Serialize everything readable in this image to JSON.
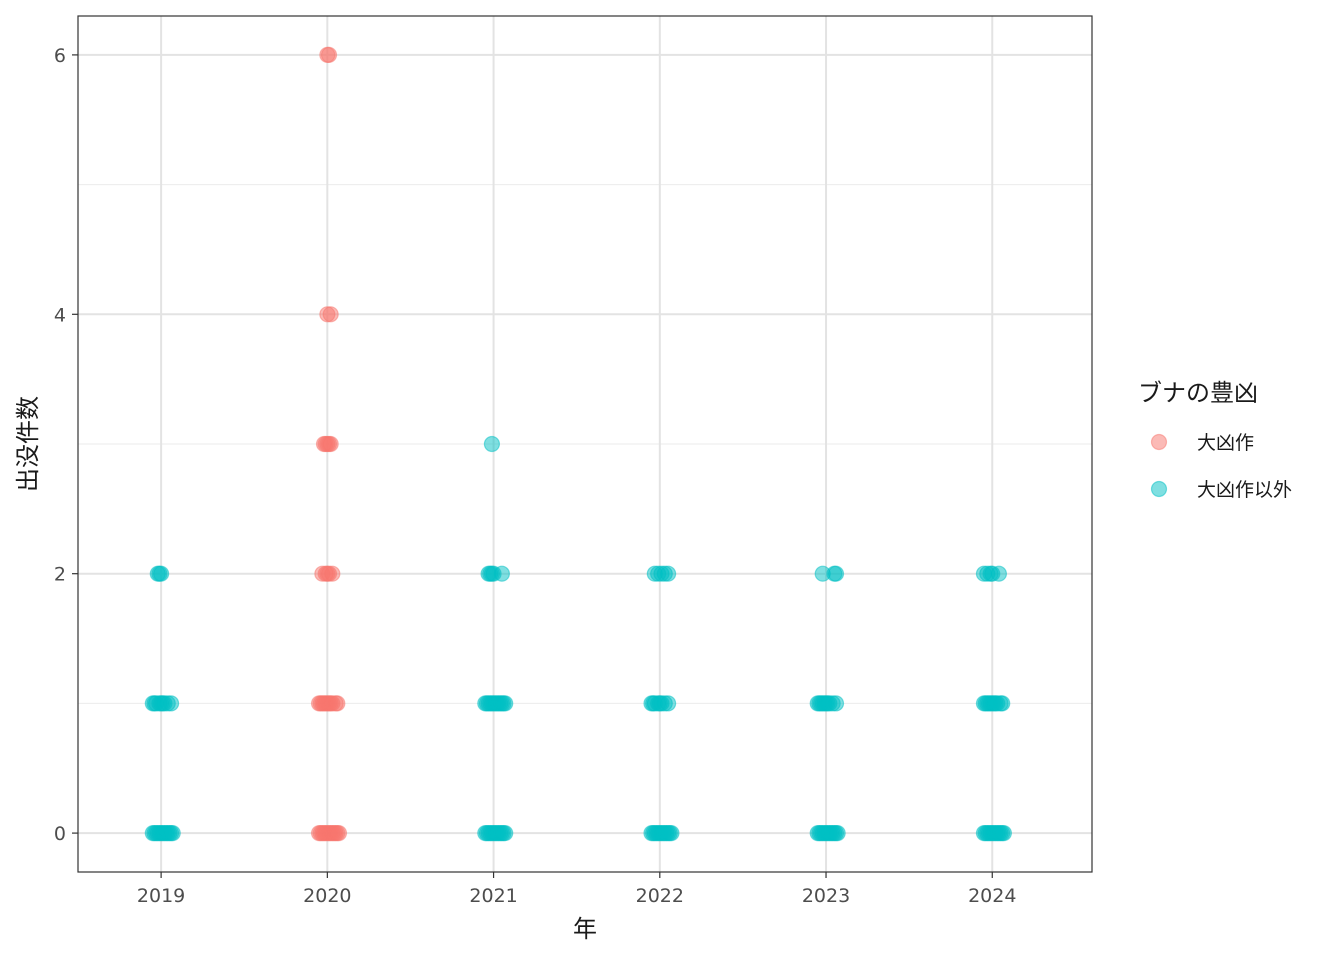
{
  "chart_data": {
    "type": "scatter",
    "xlabel": "年",
    "ylabel": "出没件数",
    "x_ticks": [
      "2019",
      "2020",
      "2021",
      "2022",
      "2023",
      "2024"
    ],
    "y_ticks": [
      "0",
      "2",
      "4",
      "6"
    ],
    "xlim": [
      2018.5,
      2024.6
    ],
    "ylim": [
      -0.3,
      6.3
    ],
    "grid": true,
    "legend": {
      "title": "ブナの豊凶",
      "placement": "right",
      "entries": [
        {
          "label": "大凶作",
          "color": "#F8766D"
        },
        {
          "label": "大凶作以外",
          "color": "#00BFC4"
        }
      ]
    },
    "series": [
      {
        "name": "大凶作",
        "color": "#F8766D",
        "points": [
          {
            "x": 2020.0,
            "y": 6
          },
          {
            "x": 2020.01,
            "y": 6
          },
          {
            "x": 2020.0,
            "y": 4
          },
          {
            "x": 2020.02,
            "y": 4
          },
          {
            "x": 2019.98,
            "y": 3
          },
          {
            "x": 2019.99,
            "y": 3
          },
          {
            "x": 2020.0,
            "y": 3
          },
          {
            "x": 2020.01,
            "y": 3
          },
          {
            "x": 2020.02,
            "y": 3
          },
          {
            "x": 2019.97,
            "y": 2
          },
          {
            "x": 2019.99,
            "y": 2
          },
          {
            "x": 2020.0,
            "y": 2
          },
          {
            "x": 2020.01,
            "y": 2
          },
          {
            "x": 2020.03,
            "y": 2
          },
          {
            "x": 2019.95,
            "y": 1
          },
          {
            "x": 2019.96,
            "y": 1
          },
          {
            "x": 2019.97,
            "y": 1
          },
          {
            "x": 2019.98,
            "y": 1
          },
          {
            "x": 2019.99,
            "y": 1
          },
          {
            "x": 2020.0,
            "y": 1
          },
          {
            "x": 2020.01,
            "y": 1
          },
          {
            "x": 2020.02,
            "y": 1
          },
          {
            "x": 2020.03,
            "y": 1
          },
          {
            "x": 2020.05,
            "y": 1
          },
          {
            "x": 2020.06,
            "y": 1
          },
          {
            "x": 2019.95,
            "y": 0
          },
          {
            "x": 2019.96,
            "y": 0
          },
          {
            "x": 2019.97,
            "y": 0
          },
          {
            "x": 2019.98,
            "y": 0
          },
          {
            "x": 2019.99,
            "y": 0
          },
          {
            "x": 2020.0,
            "y": 0
          },
          {
            "x": 2020.01,
            "y": 0
          },
          {
            "x": 2020.02,
            "y": 0
          },
          {
            "x": 2020.03,
            "y": 0
          },
          {
            "x": 2020.04,
            "y": 0
          },
          {
            "x": 2020.05,
            "y": 0
          },
          {
            "x": 2020.06,
            "y": 0
          },
          {
            "x": 2020.07,
            "y": 0
          }
        ]
      },
      {
        "name": "大凶作以外",
        "color": "#00BFC4",
        "points": [
          {
            "x": 2018.98,
            "y": 2
          },
          {
            "x": 2018.99,
            "y": 2
          },
          {
            "x": 2019.0,
            "y": 2
          },
          {
            "x": 2018.95,
            "y": 1
          },
          {
            "x": 2018.96,
            "y": 1
          },
          {
            "x": 2018.97,
            "y": 1
          },
          {
            "x": 2018.99,
            "y": 1
          },
          {
            "x": 2019.0,
            "y": 1
          },
          {
            "x": 2019.01,
            "y": 1
          },
          {
            "x": 2019.02,
            "y": 1
          },
          {
            "x": 2019.04,
            "y": 1
          },
          {
            "x": 2019.06,
            "y": 1
          },
          {
            "x": 2018.95,
            "y": 0
          },
          {
            "x": 2018.96,
            "y": 0
          },
          {
            "x": 2018.97,
            "y": 0
          },
          {
            "x": 2018.98,
            "y": 0
          },
          {
            "x": 2018.99,
            "y": 0
          },
          {
            "x": 2019.0,
            "y": 0
          },
          {
            "x": 2019.01,
            "y": 0
          },
          {
            "x": 2019.02,
            "y": 0
          },
          {
            "x": 2019.03,
            "y": 0
          },
          {
            "x": 2019.04,
            "y": 0
          },
          {
            "x": 2019.05,
            "y": 0
          },
          {
            "x": 2019.06,
            "y": 0
          },
          {
            "x": 2019.07,
            "y": 0
          },
          {
            "x": 2020.99,
            "y": 3
          },
          {
            "x": 2020.97,
            "y": 2
          },
          {
            "x": 2020.98,
            "y": 2
          },
          {
            "x": 2020.99,
            "y": 2
          },
          {
            "x": 2021.0,
            "y": 2
          },
          {
            "x": 2021.05,
            "y": 2
          },
          {
            "x": 2020.95,
            "y": 1
          },
          {
            "x": 2020.96,
            "y": 1
          },
          {
            "x": 2020.97,
            "y": 1
          },
          {
            "x": 2020.98,
            "y": 1
          },
          {
            "x": 2020.99,
            "y": 1
          },
          {
            "x": 2021.0,
            "y": 1
          },
          {
            "x": 2021.01,
            "y": 1
          },
          {
            "x": 2021.02,
            "y": 1
          },
          {
            "x": 2021.03,
            "y": 1
          },
          {
            "x": 2021.04,
            "y": 1
          },
          {
            "x": 2021.05,
            "y": 1
          },
          {
            "x": 2021.06,
            "y": 1
          },
          {
            "x": 2021.07,
            "y": 1
          },
          {
            "x": 2020.95,
            "y": 0
          },
          {
            "x": 2020.96,
            "y": 0
          },
          {
            "x": 2020.97,
            "y": 0
          },
          {
            "x": 2020.98,
            "y": 0
          },
          {
            "x": 2020.99,
            "y": 0
          },
          {
            "x": 2021.0,
            "y": 0
          },
          {
            "x": 2021.01,
            "y": 0
          },
          {
            "x": 2021.02,
            "y": 0
          },
          {
            "x": 2021.03,
            "y": 0
          },
          {
            "x": 2021.04,
            "y": 0
          },
          {
            "x": 2021.05,
            "y": 0
          },
          {
            "x": 2021.06,
            "y": 0
          },
          {
            "x": 2021.07,
            "y": 0
          },
          {
            "x": 2021.97,
            "y": 2
          },
          {
            "x": 2021.99,
            "y": 2
          },
          {
            "x": 2022.01,
            "y": 2
          },
          {
            "x": 2022.03,
            "y": 2
          },
          {
            "x": 2022.05,
            "y": 2
          },
          {
            "x": 2021.95,
            "y": 1
          },
          {
            "x": 2021.96,
            "y": 1
          },
          {
            "x": 2021.97,
            "y": 1
          },
          {
            "x": 2021.99,
            "y": 1
          },
          {
            "x": 2022.0,
            "y": 1
          },
          {
            "x": 2022.01,
            "y": 1
          },
          {
            "x": 2022.03,
            "y": 1
          },
          {
            "x": 2022.05,
            "y": 1
          },
          {
            "x": 2021.95,
            "y": 0
          },
          {
            "x": 2021.96,
            "y": 0
          },
          {
            "x": 2021.97,
            "y": 0
          },
          {
            "x": 2021.98,
            "y": 0
          },
          {
            "x": 2021.99,
            "y": 0
          },
          {
            "x": 2022.0,
            "y": 0
          },
          {
            "x": 2022.01,
            "y": 0
          },
          {
            "x": 2022.02,
            "y": 0
          },
          {
            "x": 2022.03,
            "y": 0
          },
          {
            "x": 2022.04,
            "y": 0
          },
          {
            "x": 2022.05,
            "y": 0
          },
          {
            "x": 2022.06,
            "y": 0
          },
          {
            "x": 2022.07,
            "y": 0
          },
          {
            "x": 2022.98,
            "y": 2
          },
          {
            "x": 2023.05,
            "y": 2
          },
          {
            "x": 2023.06,
            "y": 2
          },
          {
            "x": 2022.95,
            "y": 1
          },
          {
            "x": 2022.96,
            "y": 1
          },
          {
            "x": 2022.97,
            "y": 1
          },
          {
            "x": 2022.98,
            "y": 1
          },
          {
            "x": 2022.99,
            "y": 1
          },
          {
            "x": 2023.0,
            "y": 1
          },
          {
            "x": 2023.01,
            "y": 1
          },
          {
            "x": 2023.02,
            "y": 1
          },
          {
            "x": 2023.04,
            "y": 1
          },
          {
            "x": 2023.06,
            "y": 1
          },
          {
            "x": 2022.95,
            "y": 0
          },
          {
            "x": 2022.96,
            "y": 0
          },
          {
            "x": 2022.97,
            "y": 0
          },
          {
            "x": 2022.98,
            "y": 0
          },
          {
            "x": 2022.99,
            "y": 0
          },
          {
            "x": 2023.0,
            "y": 0
          },
          {
            "x": 2023.01,
            "y": 0
          },
          {
            "x": 2023.02,
            "y": 0
          },
          {
            "x": 2023.03,
            "y": 0
          },
          {
            "x": 2023.04,
            "y": 0
          },
          {
            "x": 2023.05,
            "y": 0
          },
          {
            "x": 2023.06,
            "y": 0
          },
          {
            "x": 2023.07,
            "y": 0
          },
          {
            "x": 2023.95,
            "y": 2
          },
          {
            "x": 2023.97,
            "y": 2
          },
          {
            "x": 2023.99,
            "y": 2
          },
          {
            "x": 2024.0,
            "y": 2
          },
          {
            "x": 2024.04,
            "y": 2
          },
          {
            "x": 2023.95,
            "y": 1
          },
          {
            "x": 2023.96,
            "y": 1
          },
          {
            "x": 2023.97,
            "y": 1
          },
          {
            "x": 2023.98,
            "y": 1
          },
          {
            "x": 2023.99,
            "y": 1
          },
          {
            "x": 2024.0,
            "y": 1
          },
          {
            "x": 2024.01,
            "y": 1
          },
          {
            "x": 2024.02,
            "y": 1
          },
          {
            "x": 2024.03,
            "y": 1
          },
          {
            "x": 2024.05,
            "y": 1
          },
          {
            "x": 2024.06,
            "y": 1
          },
          {
            "x": 2023.95,
            "y": 0
          },
          {
            "x": 2023.96,
            "y": 0
          },
          {
            "x": 2023.97,
            "y": 0
          },
          {
            "x": 2023.98,
            "y": 0
          },
          {
            "x": 2023.99,
            "y": 0
          },
          {
            "x": 2024.0,
            "y": 0
          },
          {
            "x": 2024.01,
            "y": 0
          },
          {
            "x": 2024.02,
            "y": 0
          },
          {
            "x": 2024.03,
            "y": 0
          },
          {
            "x": 2024.04,
            "y": 0
          },
          {
            "x": 2024.05,
            "y": 0
          },
          {
            "x": 2024.06,
            "y": 0
          },
          {
            "x": 2024.07,
            "y": 0
          }
        ]
      }
    ]
  }
}
